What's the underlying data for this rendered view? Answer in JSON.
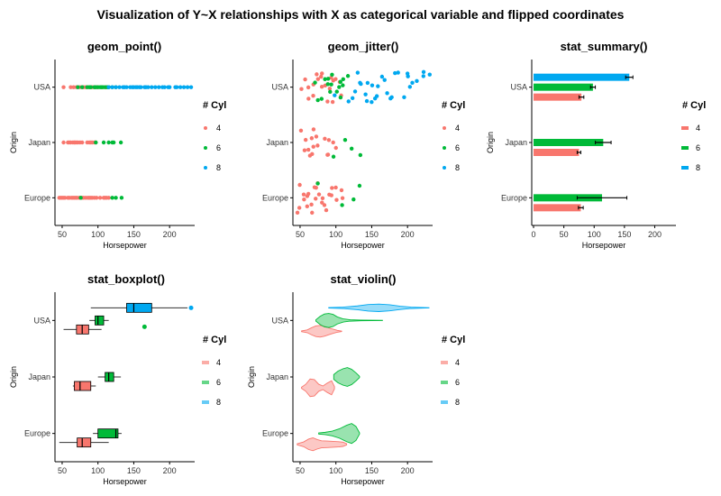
{
  "title": "Visualization of Y~X relationships with X as categorical variable and flipped coordinates",
  "legend": {
    "title": "# Cyl",
    "levels": [
      "4",
      "6",
      "8"
    ]
  },
  "colors": {
    "4": "#F8766D",
    "6": "#00BA38",
    "8": "#00A8F0"
  },
  "chart_data": [
    {
      "type": "scatter",
      "title": "geom_point()",
      "xlabel": "Horsepower",
      "ylabel": "Origin",
      "categories": [
        "Europe",
        "Japan",
        "USA"
      ],
      "xlim": [
        40,
        235
      ],
      "xticks": [
        50,
        100,
        150,
        200
      ],
      "legend_position": "right",
      "series": [
        {
          "name": "4",
          "cat": "USA",
          "x": [
            52,
            62,
            66,
            70,
            72,
            75,
            78,
            80,
            83,
            85,
            88,
            90,
            92,
            95,
            98,
            100,
            105,
            110,
            112,
            115
          ]
        },
        {
          "name": "6",
          "cat": "USA",
          "x": [
            72,
            78,
            85,
            88,
            90,
            95,
            97,
            100,
            103,
            105,
            107,
            110,
            113,
            115,
            120,
            125
          ]
        },
        {
          "name": "8",
          "cat": "USA",
          "x": [
            115,
            120,
            125,
            130,
            135,
            137,
            140,
            145,
            148,
            150,
            153,
            155,
            158,
            160,
            165,
            167,
            170,
            175,
            180,
            185,
            190,
            193,
            198,
            200,
            208,
            210,
            215,
            220,
            225,
            230
          ]
        },
        {
          "name": "4",
          "cat": "Japan",
          "x": [
            52,
            58,
            60,
            62,
            65,
            67,
            68,
            70,
            72,
            75,
            78,
            85,
            88,
            90,
            92,
            95,
            97
          ]
        },
        {
          "name": "6",
          "cat": "Japan",
          "x": [
            97,
            108,
            115,
            120,
            122,
            132
          ]
        },
        {
          "name": "4",
          "cat": "Europe",
          "x": [
            46,
            48,
            50,
            52,
            54,
            58,
            60,
            63,
            65,
            67,
            69,
            71,
            74,
            76,
            78,
            80,
            83,
            86,
            88,
            90,
            92,
            95,
            98,
            103,
            108,
            110,
            112,
            115
          ]
        },
        {
          "name": "6",
          "cat": "Europe",
          "x": [
            76,
            120,
            125,
            133
          ]
        }
      ]
    },
    {
      "type": "scatter",
      "title": "geom_jitter()",
      "xlabel": "Horsepower",
      "ylabel": "",
      "categories": [
        "Europe",
        "Japan",
        "USA"
      ],
      "xlim": [
        40,
        235
      ],
      "xticks": [
        50,
        100,
        150,
        200
      ],
      "legend_position": "right",
      "series": [
        {
          "name": "4",
          "cat": "USA",
          "x": [
            52,
            60,
            62,
            65,
            68,
            70,
            72,
            75,
            78,
            80,
            83,
            85,
            88,
            90,
            92,
            95,
            98,
            100,
            105,
            110
          ]
        },
        {
          "name": "6",
          "cat": "USA",
          "x": [
            72,
            78,
            82,
            85,
            88,
            90,
            92,
            95,
            97,
            100,
            103,
            105,
            107,
            110,
            112,
            115
          ]
        },
        {
          "name": "8",
          "cat": "USA",
          "x": [
            100,
            115,
            120,
            125,
            130,
            135,
            137,
            140,
            145,
            148,
            150,
            153,
            155,
            158,
            160,
            165,
            168,
            170,
            175,
            180,
            185,
            190,
            195,
            198,
            200,
            205,
            210,
            215,
            220,
            225,
            230
          ]
        },
        {
          "name": "4",
          "cat": "Japan",
          "x": [
            52,
            58,
            60,
            62,
            65,
            67,
            68,
            70,
            72,
            75,
            78,
            85,
            88,
            90,
            92,
            95,
            97
          ]
        },
        {
          "name": "6",
          "cat": "Japan",
          "x": [
            97,
            110,
            122,
            132
          ]
        },
        {
          "name": "4",
          "cat": "Europe",
          "x": [
            46,
            48,
            50,
            52,
            54,
            58,
            60,
            63,
            65,
            67,
            69,
            71,
            74,
            76,
            78,
            80,
            83,
            86,
            88,
            90,
            92,
            95,
            98,
            103,
            108,
            110
          ]
        },
        {
          "name": "6",
          "cat": "Europe",
          "x": [
            76,
            112,
            125,
            130
          ]
        }
      ]
    },
    {
      "type": "bar",
      "title": "stat_summary()",
      "xlabel": "Horsepower",
      "ylabel": "Origin",
      "categories": [
        "Europe",
        "Japan",
        "USA"
      ],
      "xlim": [
        -3,
        235
      ],
      "xticks": [
        0,
        50,
        100,
        150,
        200
      ],
      "legend_position": "right",
      "bars": [
        {
          "cat": "USA",
          "group": "4",
          "mean": 79,
          "lo": 75,
          "hi": 83
        },
        {
          "cat": "USA",
          "group": "6",
          "mean": 98,
          "lo": 94,
          "hi": 102
        },
        {
          "cat": "USA",
          "group": "8",
          "mean": 158,
          "lo": 152,
          "hi": 164
        },
        {
          "cat": "Japan",
          "group": "4",
          "mean": 75,
          "lo": 72,
          "hi": 78
        },
        {
          "cat": "Japan",
          "group": "6",
          "mean": 115,
          "lo": 102,
          "hi": 128
        },
        {
          "cat": "Europe",
          "group": "4",
          "mean": 78,
          "lo": 74,
          "hi": 82
        },
        {
          "cat": "Europe",
          "group": "6",
          "mean": 113,
          "lo": 72,
          "hi": 154
        }
      ]
    },
    {
      "type": "boxplot",
      "title": "stat_boxplot()",
      "xlabel": "Horsepower",
      "ylabel": "Origin",
      "categories": [
        "Europe",
        "Japan",
        "USA"
      ],
      "xlim": [
        40,
        235
      ],
      "xticks": [
        50,
        100,
        150,
        200
      ],
      "legend_position": "right",
      "boxes": [
        {
          "cat": "USA",
          "group": "4",
          "wmin": 52,
          "q1": 70,
          "med": 78,
          "q3": 87,
          "wmax": 105,
          "outliers": []
        },
        {
          "cat": "USA",
          "group": "6",
          "wmin": 88,
          "q1": 96,
          "med": 100,
          "q3": 108,
          "wmax": 115,
          "outliers": [
            165
          ]
        },
        {
          "cat": "USA",
          "group": "8",
          "wmin": 90,
          "q1": 140,
          "med": 150,
          "q3": 175,
          "wmax": 225,
          "outliers": [
            230
          ]
        },
        {
          "cat": "Japan",
          "group": "4",
          "wmin": 65,
          "q1": 67,
          "med": 75,
          "q3": 90,
          "wmax": 97,
          "outliers": []
        },
        {
          "cat": "Japan",
          "group": "6",
          "wmin": 100,
          "q1": 110,
          "med": 115,
          "q3": 122,
          "wmax": 132,
          "outliers": []
        },
        {
          "cat": "Europe",
          "group": "4",
          "wmin": 46,
          "q1": 71,
          "med": 78,
          "q3": 90,
          "wmax": 115,
          "outliers": []
        },
        {
          "cat": "Europe",
          "group": "6",
          "wmin": 93,
          "q1": 100,
          "med": 125,
          "q3": 128,
          "wmax": 133,
          "outliers": []
        }
      ]
    },
    {
      "type": "violin",
      "title": "stat_violin()",
      "xlabel": "Horsepower",
      "ylabel": "Origin",
      "categories": [
        "Europe",
        "Japan",
        "USA"
      ],
      "xlim": [
        40,
        235
      ],
      "xticks": [
        50,
        100,
        150,
        200
      ],
      "legend_position": "right",
      "violins": [
        {
          "cat": "USA",
          "group": "4",
          "x": [
            52,
            60,
            66,
            72,
            78,
            84,
            90,
            96,
            102,
            108
          ],
          "w": [
            0.03,
            0.12,
            0.3,
            0.45,
            0.5,
            0.42,
            0.3,
            0.18,
            0.08,
            0.02
          ]
        },
        {
          "cat": "USA",
          "group": "6",
          "x": [
            72,
            78,
            84,
            90,
            96,
            102,
            110,
            120,
            135,
            150,
            165
          ],
          "w": [
            0.05,
            0.35,
            0.55,
            0.6,
            0.52,
            0.3,
            0.14,
            0.06,
            0.03,
            0.02,
            0.01
          ]
        },
        {
          "cat": "USA",
          "group": "8",
          "x": [
            90,
            110,
            130,
            145,
            160,
            175,
            190,
            205,
            220,
            230
          ],
          "w": [
            0.02,
            0.06,
            0.16,
            0.28,
            0.32,
            0.26,
            0.14,
            0.06,
            0.03,
            0.01
          ]
        },
        {
          "cat": "Japan",
          "group": "4",
          "x": [
            52,
            58,
            64,
            70,
            76,
            82,
            88,
            94,
            98
          ],
          "w": [
            0.05,
            0.3,
            0.75,
            0.7,
            0.3,
            0.15,
            0.4,
            0.6,
            0.1
          ]
        },
        {
          "cat": "Japan",
          "group": "6",
          "x": [
            97,
            103,
            110,
            116,
            122,
            128,
            133
          ],
          "w": [
            0.2,
            0.5,
            0.7,
            0.8,
            0.65,
            0.35,
            0.05
          ]
        },
        {
          "cat": "Europe",
          "group": "4",
          "x": [
            46,
            55,
            62,
            68,
            74,
            80,
            88,
            96,
            104,
            110,
            115
          ],
          "w": [
            0.05,
            0.2,
            0.45,
            0.55,
            0.4,
            0.3,
            0.28,
            0.25,
            0.22,
            0.18,
            0.05
          ]
        },
        {
          "cat": "Europe",
          "group": "6",
          "x": [
            76,
            85,
            95,
            105,
            115,
            122,
            128,
            133
          ],
          "w": [
            0.05,
            0.1,
            0.2,
            0.4,
            0.7,
            0.85,
            0.6,
            0.05
          ]
        }
      ]
    }
  ]
}
